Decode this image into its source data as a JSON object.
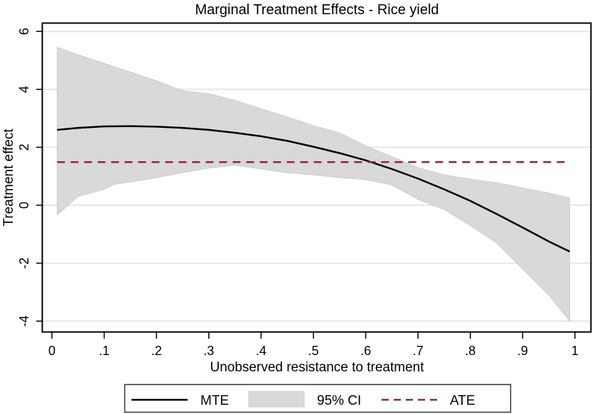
{
  "chart_data": {
    "type": "line",
    "title": "Marginal Treatment Effects - Rice yield",
    "xlabel": "Unobserved resistance to treatment",
    "ylabel": "Treatment effect",
    "xlim": [
      0,
      1
    ],
    "ylim": [
      -4,
      6
    ],
    "xticks": [
      0,
      0.1,
      0.2,
      0.3,
      0.4,
      0.5,
      0.6,
      0.7,
      0.8,
      0.9,
      1
    ],
    "xtick_labels": [
      "0",
      ".1",
      ".2",
      ".3",
      ".4",
      ".5",
      ".6",
      ".7",
      ".8",
      ".9",
      "1"
    ],
    "yticks": [
      -4,
      -2,
      0,
      2,
      4,
      6
    ],
    "ytick_labels": [
      "-4",
      "-2",
      "0",
      "2",
      "4",
      "6"
    ],
    "grid": "horizontal",
    "legend_position": "bottom",
    "series": [
      {
        "name": "MTE",
        "kind": "line",
        "color": "#000000",
        "x": [
          0.01,
          0.05,
          0.1,
          0.15,
          0.2,
          0.25,
          0.3,
          0.35,
          0.4,
          0.45,
          0.5,
          0.55,
          0.6,
          0.65,
          0.7,
          0.75,
          0.8,
          0.85,
          0.9,
          0.95,
          0.99
        ],
        "y": [
          2.6,
          2.67,
          2.72,
          2.73,
          2.71,
          2.67,
          2.6,
          2.5,
          2.38,
          2.22,
          2.02,
          1.8,
          1.55,
          1.25,
          0.92,
          0.55,
          0.15,
          -0.3,
          -0.77,
          -1.25,
          -1.6
        ]
      },
      {
        "name": "95% CI",
        "kind": "band",
        "color": "#d9d9d9",
        "x_upper": [
          0.01,
          0.05,
          0.1,
          0.15,
          0.2,
          0.25,
          0.3,
          0.35,
          0.4,
          0.45,
          0.5,
          0.55,
          0.6,
          0.65,
          0.7,
          0.75,
          0.8,
          0.85,
          0.9,
          0.95,
          0.99
        ],
        "upper": [
          5.45,
          5.2,
          4.9,
          4.6,
          4.3,
          3.95,
          3.85,
          3.62,
          3.33,
          3.05,
          2.75,
          2.5,
          2.05,
          1.68,
          1.3,
          1.05,
          0.9,
          0.78,
          0.6,
          0.42,
          0.25
        ],
        "x_lower": [
          0.01,
          0.05,
          0.1,
          0.12,
          0.15,
          0.2,
          0.25,
          0.3,
          0.35,
          0.4,
          0.45,
          0.5,
          0.55,
          0.6,
          0.65,
          0.7,
          0.75,
          0.8,
          0.85,
          0.9,
          0.95,
          0.99
        ],
        "lower": [
          -0.33,
          0.3,
          0.55,
          0.72,
          0.8,
          0.95,
          1.12,
          1.28,
          1.38,
          1.25,
          1.12,
          1.05,
          0.95,
          0.88,
          0.7,
          0.2,
          -0.15,
          -0.7,
          -1.3,
          -2.2,
          -3.1,
          -4.0
        ]
      },
      {
        "name": "ATE",
        "kind": "dashed-line",
        "color": "#8b2a35",
        "x": [
          0.01,
          0.99
        ],
        "y": [
          1.49,
          1.49
        ]
      }
    ],
    "legend": [
      {
        "label": "MTE",
        "symbol": "solid-line",
        "color": "#000000"
      },
      {
        "label": "95% CI",
        "symbol": "filled-box",
        "color": "#d9d9d9"
      },
      {
        "label": "ATE",
        "symbol": "dashed-line",
        "color": "#8b2a35"
      }
    ]
  }
}
